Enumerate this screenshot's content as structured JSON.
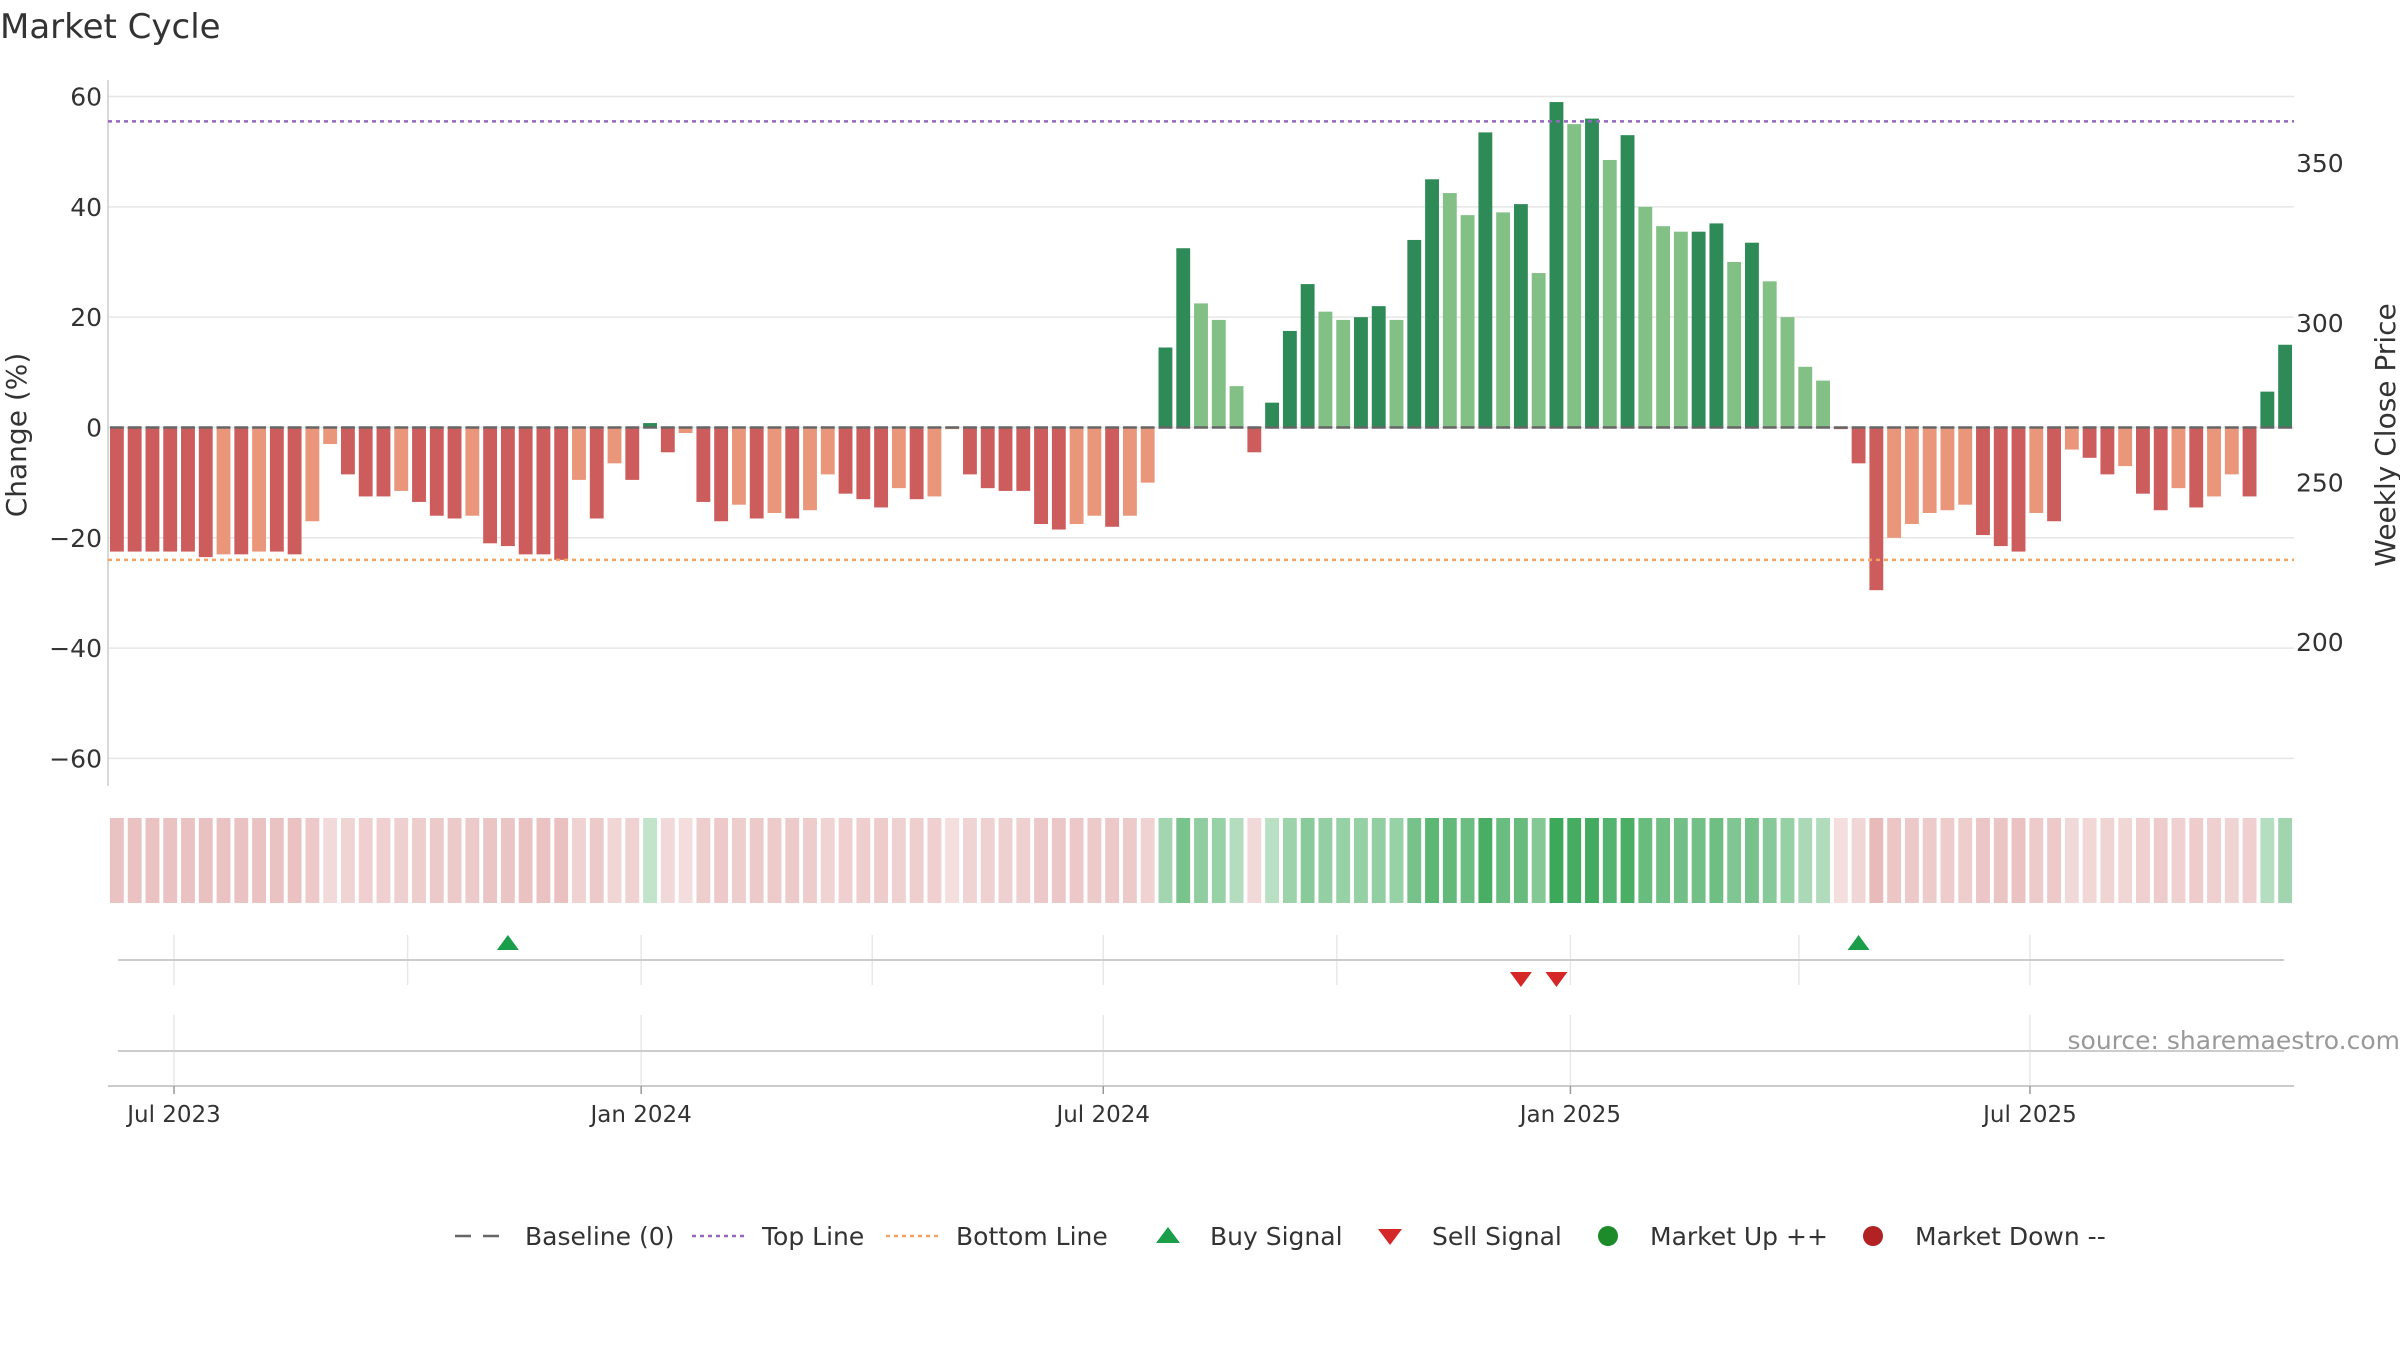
{
  "chart_data": {
    "type": "bar",
    "title": "Market Cycle",
    "ylabel": "Change (%)",
    "y2label": "Weekly Close Price",
    "ylim": [
      -65,
      63
    ],
    "y2lim": [
      155,
      376
    ],
    "yticks": [
      60,
      40,
      20,
      0,
      -20,
      -40,
      -60
    ],
    "ytick_labels": [
      "60",
      "40",
      "20",
      "0",
      "−20",
      "−40",
      "−60"
    ],
    "y2ticks": [
      350,
      300,
      250,
      200
    ],
    "y2tick_labels": [
      "350",
      "300",
      "250",
      "200"
    ],
    "x_start": "2023-06-05",
    "x_end": "2025-10-13",
    "xticks": [
      {
        "date": "2023-07-01",
        "label": "Jul 2023"
      },
      {
        "date": "2024-01-01",
        "label": "Jan 2024"
      },
      {
        "date": "2024-07-01",
        "label": "Jul 2024"
      },
      {
        "date": "2025-01-01",
        "label": "Jan 2025"
      },
      {
        "date": "2025-07-01",
        "label": "Jul 2025"
      }
    ],
    "minor_grid_dates": [
      "2023-07-01",
      "2023-10-01",
      "2024-01-01",
      "2024-04-01",
      "2024-07-01",
      "2024-10-01",
      "2025-01-01",
      "2025-04-01",
      "2025-07-01"
    ],
    "first_week": "2023-06-05",
    "values": [
      -22.5,
      -22.5,
      -22.5,
      -22.5,
      -22.5,
      -23.5,
      -23,
      -23,
      -22.5,
      -22.5,
      -23,
      -17,
      -3,
      -8.5,
      -12.5,
      -12.5,
      -11.5,
      -13.5,
      -16,
      -16.5,
      -16,
      -21,
      -21.5,
      -23,
      -23,
      -24,
      -9.5,
      -16.5,
      -6.5,
      -9.5,
      0.8,
      -4.5,
      -1,
      -13.5,
      -17,
      -14,
      -16.5,
      -15.5,
      -16.5,
      -15,
      -8.5,
      -12,
      -13,
      -14.5,
      -11,
      -13,
      -12.5,
      -0.3,
      -8.5,
      -11,
      -11.5,
      -11.5,
      -17.5,
      -18.5,
      -17.5,
      -16,
      -18,
      -16,
      -10,
      14.5,
      32.5,
      22.5,
      19.5,
      7.5,
      -4.5,
      4.5,
      17.5,
      26,
      21,
      19.5,
      20,
      22,
      19.5,
      34,
      45,
      42.5,
      38.5,
      53.5,
      39,
      40.5,
      28,
      59,
      55,
      56,
      48.5,
      53,
      40,
      36.5,
      35.5,
      35.5,
      37,
      30,
      33.5,
      26.5,
      20,
      11,
      8.5,
      -0.3,
      -6.5,
      -29.5,
      -20,
      -17.5,
      -15.5,
      -15,
      -14,
      -19.5,
      -21.5,
      -22.5,
      -15.5,
      -17,
      -4,
      -5.5,
      -8.5,
      -7,
      -12,
      -15,
      -11,
      -14.5,
      -12.5,
      -8.5,
      -12.5,
      6.5,
      15
    ],
    "top_line": 55.5,
    "bottom_line": -24,
    "baseline": 0,
    "buy_signals": [
      "2023-11-06",
      "2025-04-21"
    ],
    "sell_signals": [
      "2024-12-09",
      "2024-12-23"
    ],
    "legend": [
      {
        "label": "Baseline (0)",
        "marker": "dashed-line",
        "color": "#666666"
      },
      {
        "label": "Top Line",
        "marker": "dotted-line",
        "color": "#9467bd"
      },
      {
        "label": "Bottom Line",
        "marker": "dotted-line",
        "color": "#f4a460"
      },
      {
        "label": "Buy Signal",
        "marker": "triangle-up",
        "color": "#1a9e4a"
      },
      {
        "label": "Sell Signal",
        "marker": "triangle-down",
        "color": "#d62728"
      },
      {
        "label": "Market Up ++",
        "marker": "circle",
        "color": "#1e8b2a"
      },
      {
        "label": "Market Down --",
        "marker": "circle",
        "color": "#b22222"
      }
    ],
    "legend_position": "bottom-center",
    "colors": {
      "strong_up": "#2e8b57",
      "weak_up": "#82c085",
      "strong_down": "#cd5c5c",
      "weak_down": "#e9967a",
      "top_line": "#9467bd",
      "bottom_line": "#f4a460",
      "grid": "#e6e6e6",
      "axis": "#cccccc"
    },
    "source": "source: sharemaestro.com"
  }
}
